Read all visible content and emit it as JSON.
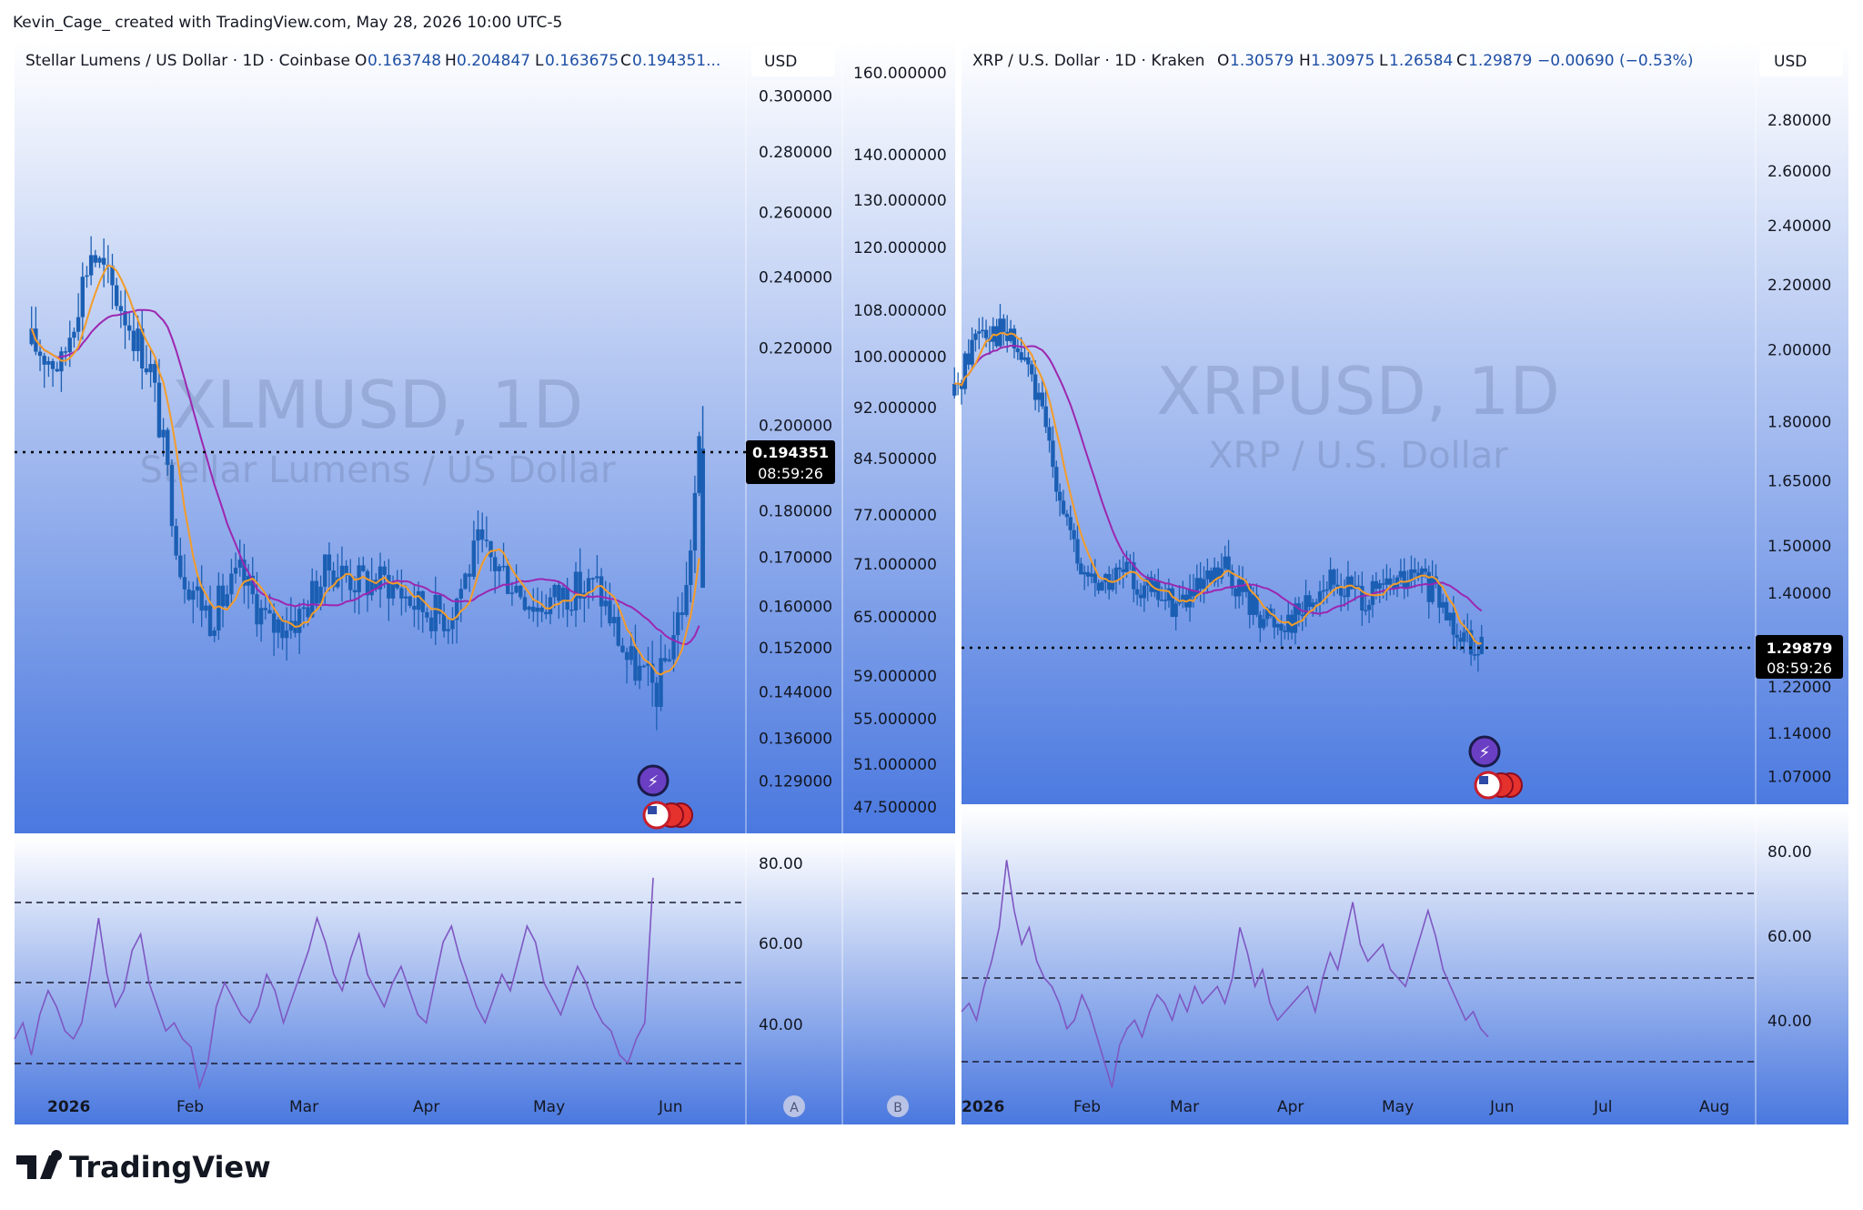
{
  "header": {
    "caption": "Kevin_Cage_ created with TradingView.com, May 28, 2026 10:00 UTC-5"
  },
  "footer": {
    "logo_text": "TradingView"
  },
  "colors": {
    "bg_top": "#ffffff",
    "bg_bottom": "#4a78df",
    "candle": "#1b5fb4",
    "ma_fast": "#f39c2a",
    "ma_slow": "#9c27b0",
    "rsi": "#7e57c2",
    "text_dark": "#131722",
    "value_blue": "#1e4fa5",
    "price_tag_bg": "#000000"
  },
  "chart_data": [
    {
      "type": "candlestick",
      "panel": "left",
      "symbol": "XLMUSD",
      "info": {
        "title": "Stellar Lumens / US Dollar · 1D · Coinbase",
        "o_label": "O",
        "o": "0.163748",
        "h_label": "H",
        "h": "0.204847",
        "l_label": "L",
        "l": "0.163675",
        "c_label": "C",
        "c": "0.194351..."
      },
      "watermark": {
        "symbol": "XLMUSD, 1D",
        "name": "Stellar Lumens / US Dollar"
      },
      "currency": "USD",
      "price_scale": {
        "type": "log",
        "ticks": [
          "0.300000",
          "0.280000",
          "0.260000",
          "0.240000",
          "0.220000",
          "0.200000",
          "0.180000",
          "0.170000",
          "0.160000",
          "0.152000",
          "0.144000",
          "0.136000",
          "0.129000"
        ]
      },
      "secondary_scale": {
        "ticks": [
          "160.000000",
          "140.000000",
          "130.000000",
          "120.000000",
          "108.000000",
          "100.000000",
          "92.000000",
          "84.500000",
          "77.000000",
          "71.000000",
          "65.000000",
          "59.000000",
          "55.000000",
          "51.000000",
          "47.500000"
        ]
      },
      "last_price": {
        "value": "0.194351",
        "countdown": "08:59:26"
      },
      "x_axis": [
        "2026",
        "Feb",
        "Mar",
        "Apr",
        "May",
        "Jun"
      ],
      "scale_badges": [
        "A",
        "B"
      ],
      "series_close": [
        {
          "x": "2025-12-22",
          "y": 0.221
        },
        {
          "x": "2025-12-29",
          "y": 0.215
        },
        {
          "x": "2026-01-05",
          "y": 0.248
        },
        {
          "x": "2026-01-12",
          "y": 0.232
        },
        {
          "x": "2026-01-19",
          "y": 0.214
        },
        {
          "x": "2026-01-26",
          "y": 0.168
        },
        {
          "x": "2026-02-02",
          "y": 0.158
        },
        {
          "x": "2026-02-09",
          "y": 0.166
        },
        {
          "x": "2026-02-16",
          "y": 0.156
        },
        {
          "x": "2026-02-23",
          "y": 0.158
        },
        {
          "x": "2026-03-02",
          "y": 0.168
        },
        {
          "x": "2026-03-09",
          "y": 0.165
        },
        {
          "x": "2026-03-16",
          "y": 0.165
        },
        {
          "x": "2026-03-23",
          "y": 0.16
        },
        {
          "x": "2026-03-30",
          "y": 0.158
        },
        {
          "x": "2026-04-06",
          "y": 0.172
        },
        {
          "x": "2026-04-13",
          "y": 0.166
        },
        {
          "x": "2026-04-20",
          "y": 0.16
        },
        {
          "x": "2026-04-27",
          "y": 0.163
        },
        {
          "x": "2026-05-04",
          "y": 0.164
        },
        {
          "x": "2026-05-11",
          "y": 0.15
        },
        {
          "x": "2026-05-18",
          "y": 0.144
        },
        {
          "x": "2026-05-25",
          "y": 0.163
        },
        {
          "x": "2026-05-28",
          "y": 0.194
        }
      ],
      "indicators": [
        "MA fast",
        "MA slow"
      ],
      "rsi": {
        "ticks": [
          "80.00",
          "60.00",
          "40.00"
        ],
        "levels": [
          70,
          50,
          30
        ],
        "values": [
          36,
          40,
          32,
          42,
          48,
          44,
          38,
          36,
          40,
          52,
          66,
          52,
          44,
          48,
          58,
          62,
          50,
          44,
          38,
          40,
          36,
          34,
          24,
          30,
          44,
          50,
          46,
          42,
          40,
          44,
          52,
          48,
          40,
          46,
          52,
          58,
          66,
          60,
          52,
          48,
          56,
          62,
          52,
          48,
          44,
          50,
          54,
          48,
          42,
          40,
          50,
          60,
          64,
          56,
          50,
          44,
          40,
          46,
          52,
          48,
          56,
          64,
          60,
          50,
          46,
          42,
          48,
          54,
          50,
          44,
          40,
          38,
          32,
          30,
          36,
          40,
          76
        ]
      }
    },
    {
      "type": "candlestick",
      "panel": "right",
      "symbol": "XRPUSD",
      "info": {
        "title": "XRP / U.S. Dollar · 1D · Kraken",
        "o_label": "O",
        "o": "1.30579",
        "h_label": "H",
        "h": "1.30975",
        "l_label": "L",
        "l": "1.26584",
        "c_label": "C",
        "c": "1.29879",
        "change": "−0.00690 (−0.53%)"
      },
      "watermark": {
        "symbol": "XRPUSD, 1D",
        "name": "XRP / U.S. Dollar"
      },
      "currency": "USD",
      "price_scale": {
        "type": "log",
        "ticks": [
          "2.80000",
          "2.60000",
          "2.40000",
          "2.20000",
          "2.00000",
          "1.80000",
          "1.65000",
          "1.50000",
          "1.40000",
          "1.22000",
          "1.14000",
          "1.07000"
        ]
      },
      "last_price": {
        "value": "1.29879",
        "countdown": "08:59:26"
      },
      "x_axis": [
        "2026",
        "Feb",
        "Mar",
        "Apr",
        "May",
        "Jun",
        "Jul",
        "Aug"
      ],
      "series_close": [
        {
          "x": "2025-12-29",
          "y": 1.87
        },
        {
          "x": "2026-01-05",
          "y": 2.08
        },
        {
          "x": "2026-01-12",
          "y": 2.05
        },
        {
          "x": "2026-01-19",
          "y": 1.95
        },
        {
          "x": "2026-01-26",
          "y": 1.7
        },
        {
          "x": "2026-02-02",
          "y": 1.45
        },
        {
          "x": "2026-02-09",
          "y": 1.42
        },
        {
          "x": "2026-02-16",
          "y": 1.44
        },
        {
          "x": "2026-02-23",
          "y": 1.4
        },
        {
          "x": "2026-03-02",
          "y": 1.38
        },
        {
          "x": "2026-03-09",
          "y": 1.4
        },
        {
          "x": "2026-03-16",
          "y": 1.45
        },
        {
          "x": "2026-03-23",
          "y": 1.38
        },
        {
          "x": "2026-03-30",
          "y": 1.34
        },
        {
          "x": "2026-04-06",
          "y": 1.36
        },
        {
          "x": "2026-04-13",
          "y": 1.42
        },
        {
          "x": "2026-04-20",
          "y": 1.41
        },
        {
          "x": "2026-04-27",
          "y": 1.39
        },
        {
          "x": "2026-05-04",
          "y": 1.42
        },
        {
          "x": "2026-05-11",
          "y": 1.43
        },
        {
          "x": "2026-05-18",
          "y": 1.36
        },
        {
          "x": "2026-05-25",
          "y": 1.31
        },
        {
          "x": "2026-05-28",
          "y": 1.299
        }
      ],
      "indicators": [
        "MA fast",
        "MA slow"
      ],
      "rsi": {
        "ticks": [
          "80.00",
          "60.00",
          "40.00"
        ],
        "levels": [
          70,
          50,
          30
        ],
        "values": [
          42,
          44,
          40,
          48,
          54,
          62,
          78,
          66,
          58,
          62,
          54,
          50,
          48,
          44,
          38,
          40,
          46,
          42,
          36,
          30,
          24,
          34,
          38,
          40,
          36,
          42,
          46,
          44,
          40,
          46,
          42,
          48,
          44,
          46,
          48,
          44,
          50,
          62,
          56,
          48,
          52,
          44,
          40,
          42,
          44,
          46,
          48,
          42,
          50,
          56,
          52,
          60,
          68,
          58,
          54,
          56,
          58,
          52,
          50,
          48,
          54,
          60,
          66,
          60,
          52,
          48,
          44,
          40,
          42,
          38,
          36
        ]
      }
    }
  ]
}
